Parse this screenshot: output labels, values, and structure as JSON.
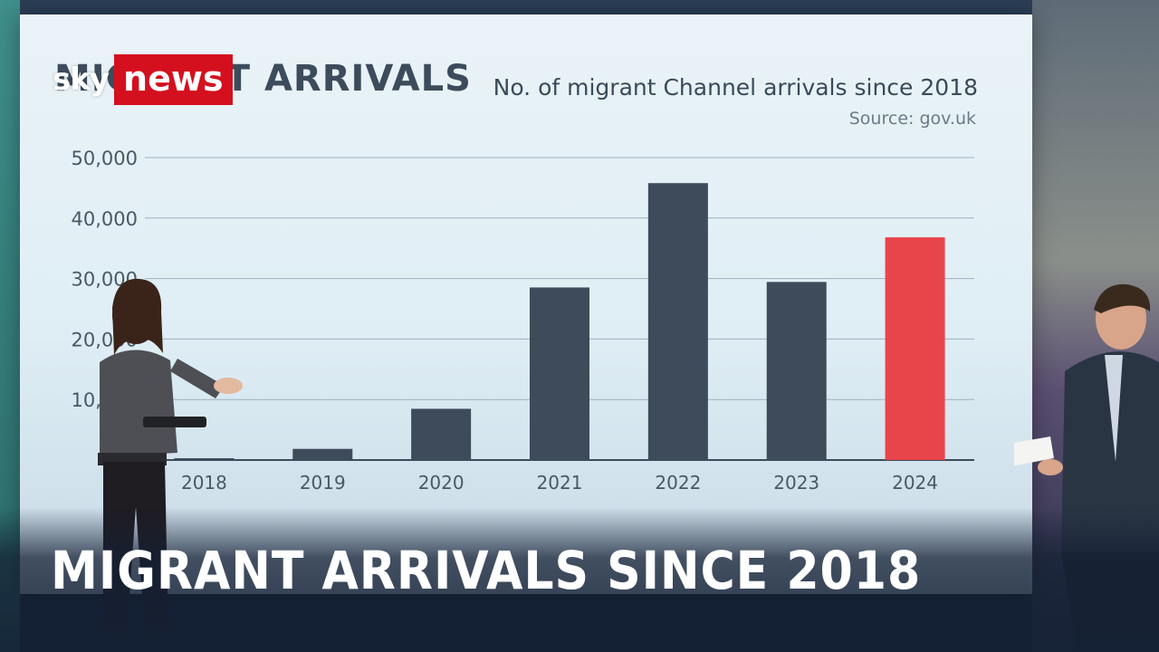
{
  "broadcaster": {
    "sky": "sky",
    "news": "news"
  },
  "screen_header": "MIGRANT ARRIVALS",
  "headline": "MIGRANT ARRIVALS SINCE 2018",
  "colors": {
    "bar": "#3d4b5a",
    "highlight": "#e8454b",
    "grid": "#9fb0bd"
  },
  "chart_data": {
    "type": "bar",
    "title": "No. of migrant Channel arrivals since 2018",
    "subtitle": "Source: gov.uk",
    "categories": [
      "2018",
      "2019",
      "2020",
      "2021",
      "2022",
      "2023",
      "2024"
    ],
    "values": [
      299,
      1843,
      8466,
      28526,
      45774,
      29437,
      36816
    ],
    "highlight_index": 6,
    "ylim": [
      0,
      50000
    ],
    "yticks": [
      "0",
      "10,000",
      "20,000",
      "30,000",
      "40,000",
      "50,000"
    ],
    "grid": true,
    "xlabel": "",
    "ylabel": ""
  }
}
